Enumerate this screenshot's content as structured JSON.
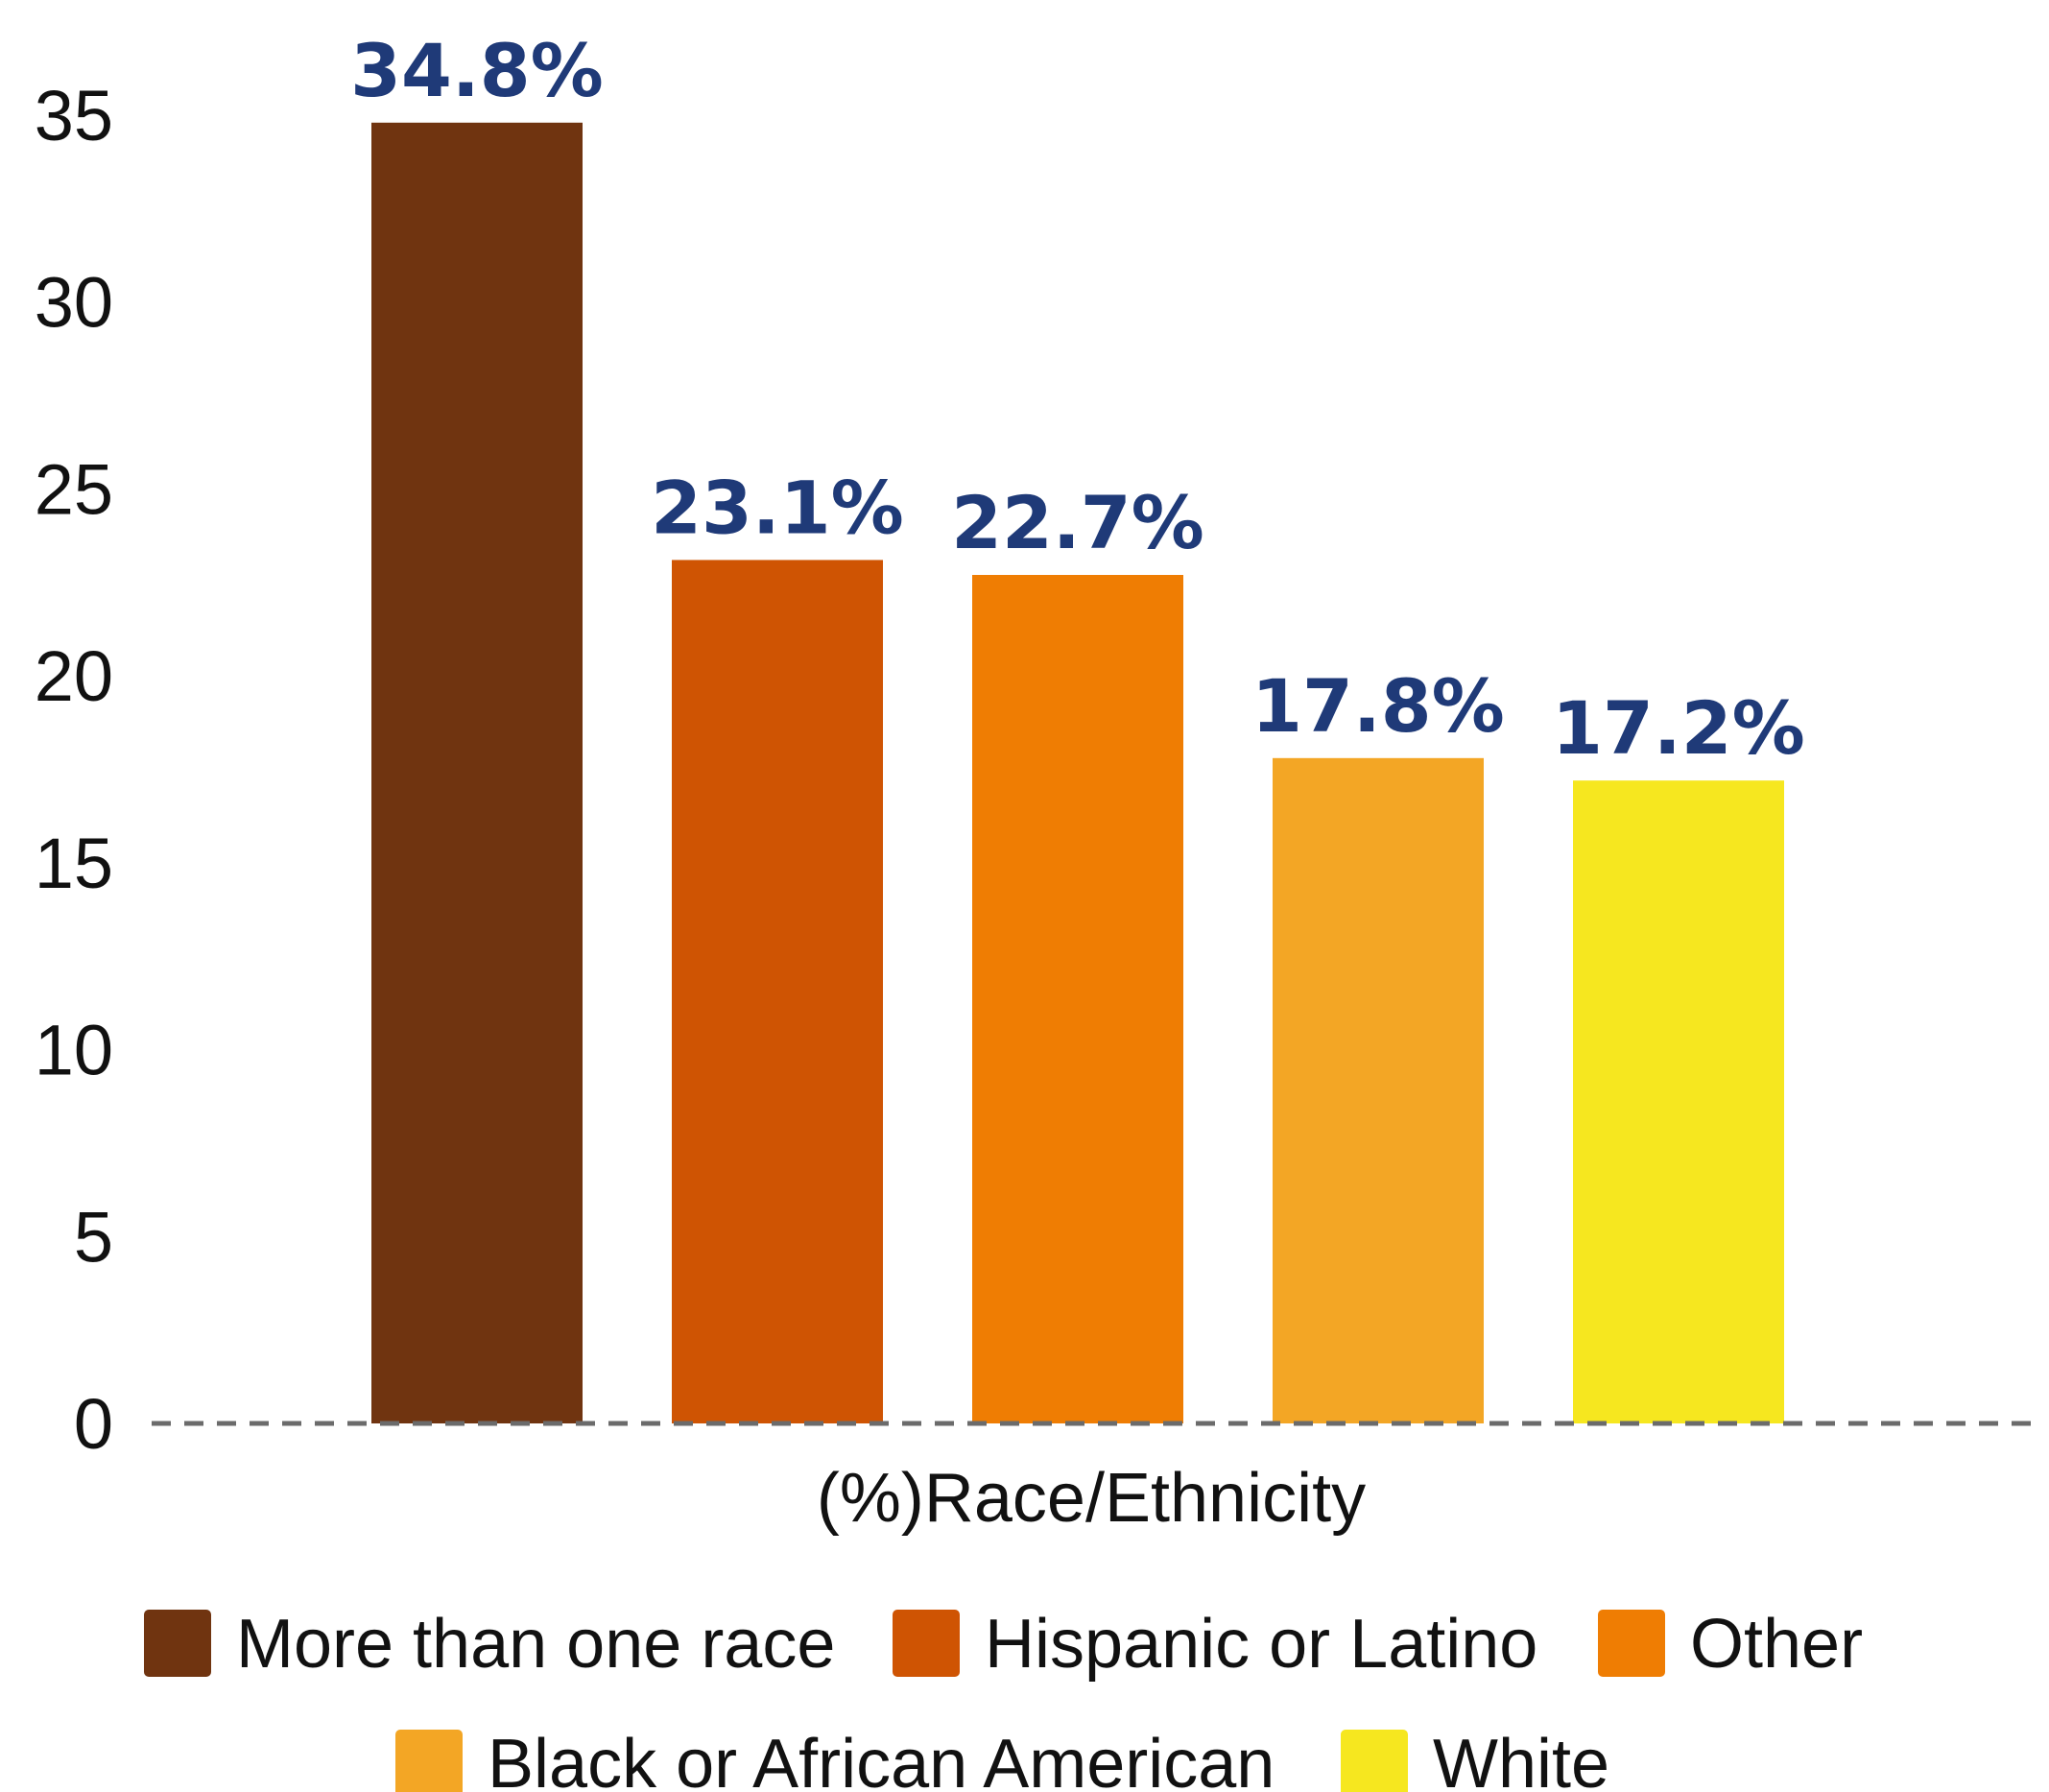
{
  "chart_data": {
    "type": "bar",
    "categories": [
      "More than one race",
      "Hispanic or Latino",
      "Other",
      "Black or African American",
      "White"
    ],
    "values": [
      34.8,
      23.1,
      22.7,
      17.8,
      17.2
    ],
    "data_labels": [
      "34.8%",
      "23.1%",
      "22.7%",
      "17.8%",
      "17.2%"
    ],
    "colors": [
      "#703410",
      "#cf5403",
      "#ef7d03",
      "#f3a625",
      "#f6e71f"
    ],
    "xlabel": "(%)Race/Ethnicity",
    "ylabel": "",
    "ylim": [
      0,
      35
    ],
    "yticks": [
      "0",
      "5",
      "10",
      "15",
      "20",
      "25",
      "30",
      "35"
    ],
    "grid": false,
    "baseline_style": "dashed",
    "legend": {
      "position": "bottom",
      "entries": [
        "More than one race",
        "Hispanic or Latino",
        "Other",
        "Black or African American",
        "White"
      ]
    },
    "label_color": "#1f3a78"
  }
}
